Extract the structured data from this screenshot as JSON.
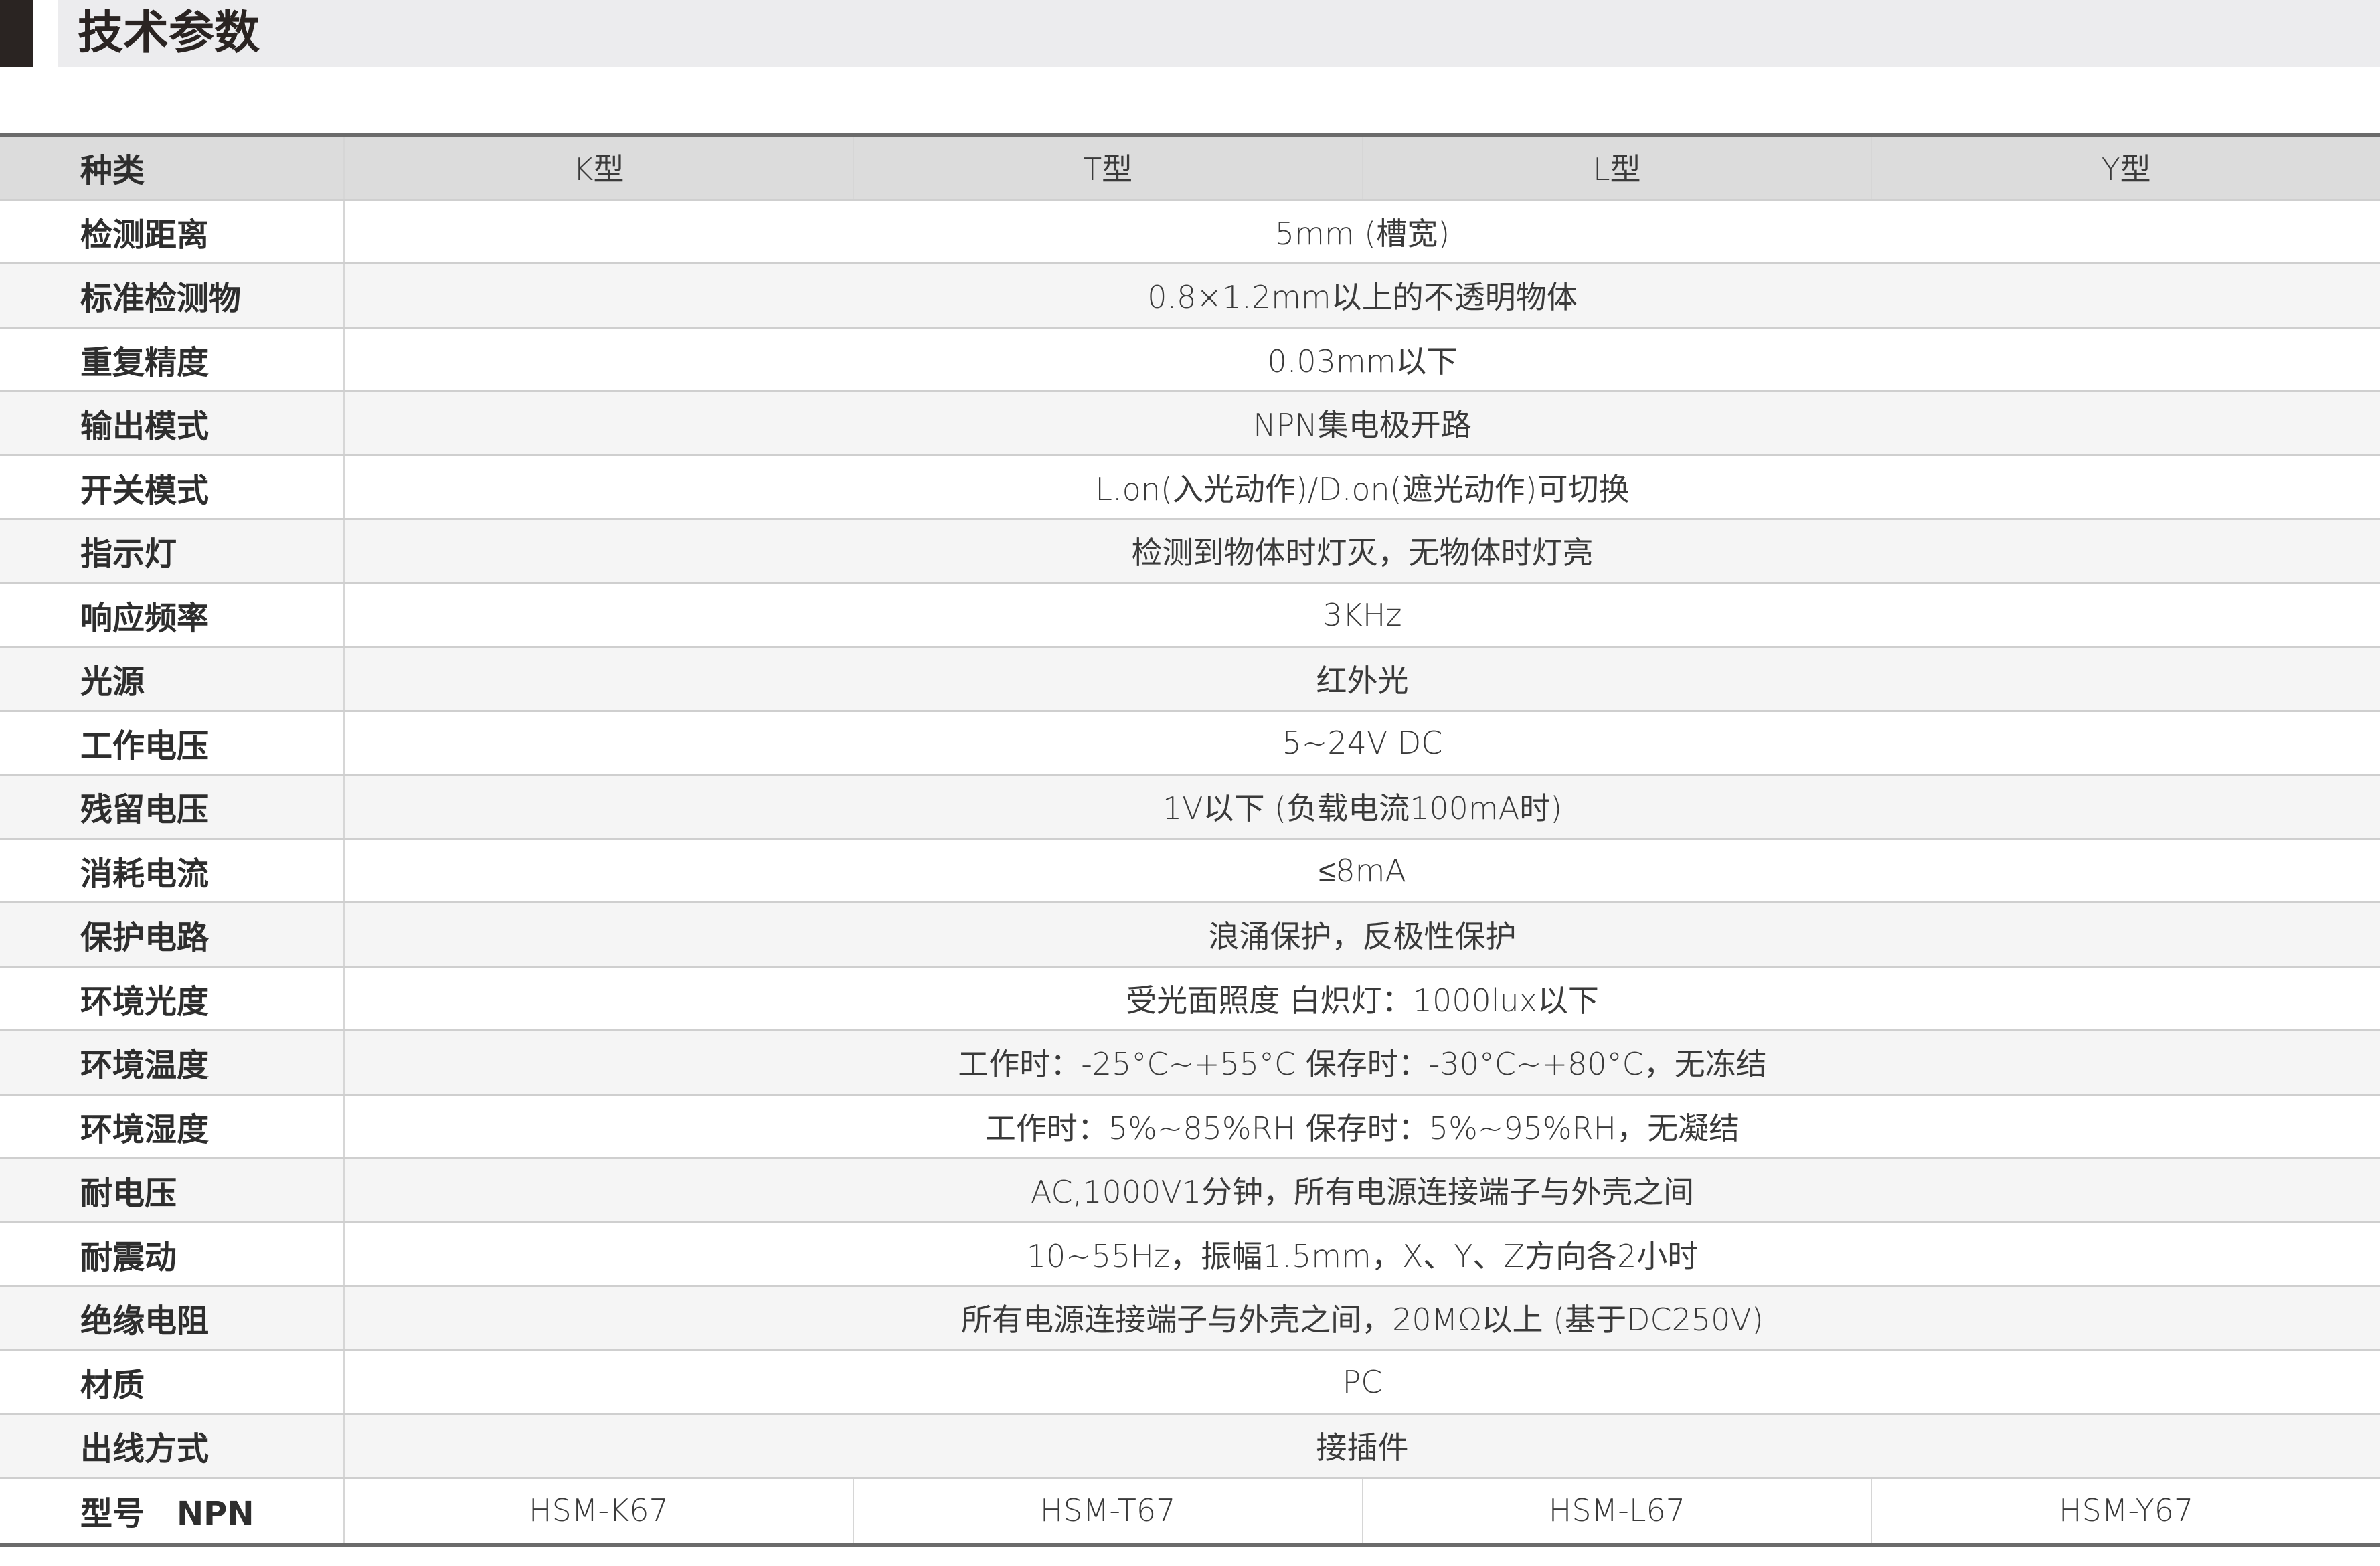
{
  "title": "技术参数",
  "header": {
    "label": "种类",
    "types": [
      "K型",
      "T型",
      "L型",
      "Y型"
    ]
  },
  "rows": [
    {
      "label": "检测距离",
      "value": "5mm (槽宽)"
    },
    {
      "label": "标准检测物",
      "value": "0.8×1.2mm以上的不透明物体"
    },
    {
      "label": "重复精度",
      "value": "0.03mm以下"
    },
    {
      "label": "输出模式",
      "value": "NPN集电极开路"
    },
    {
      "label": "开关模式",
      "value": "L.on(入光动作)/D.on(遮光动作)可切换"
    },
    {
      "label": "指示灯",
      "value": "检测到物体时灯灭，无物体时灯亮"
    },
    {
      "label": "响应频率",
      "value": "3KHz"
    },
    {
      "label": "光源",
      "value": "红外光"
    },
    {
      "label": "工作电压",
      "value": "5~24V DC"
    },
    {
      "label": "残留电压",
      "value": "1V以下 (负载电流100mA时)"
    },
    {
      "label": "消耗电流",
      "value": "≤8mA"
    },
    {
      "label": "保护电路",
      "value": "浪涌保护，反极性保护"
    },
    {
      "label": "环境光度",
      "value": "受光面照度 白炽灯：1000lux以下"
    },
    {
      "label": "环境温度",
      "value": "工作时：-25°C~+55°C  保存时：-30°C~+80°C，无冻结"
    },
    {
      "label": "环境湿度",
      "value": "工作时：5%~85%RH  保存时：5%~95%RH，无凝结"
    },
    {
      "label": "耐电压",
      "value": "AC,1000V1分钟，所有电源连接端子与外壳之间"
    },
    {
      "label": "耐震动",
      "value": "10~55Hz，振幅1.5mm，X、Y、Z方向各2小时"
    },
    {
      "label": "绝缘电阻",
      "value": "所有电源连接端子与外壳之间，20MΩ以上 (基于DC250V)"
    },
    {
      "label": "材质",
      "value": "PC"
    },
    {
      "label": "出线方式",
      "value": "接插件"
    }
  ],
  "models": {
    "label": "型号　NPN",
    "values": [
      "HSM-K67",
      "HSM-T67",
      "HSM-L67",
      "HSM-Y67"
    ]
  }
}
